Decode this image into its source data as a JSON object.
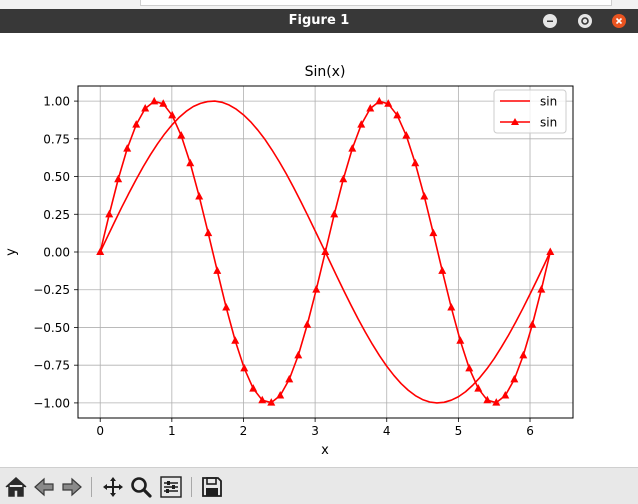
{
  "window": {
    "title": "Figure 1",
    "controls": [
      "minimize-icon",
      "maximize-icon",
      "close-icon"
    ]
  },
  "toolbar": {
    "buttons": [
      "home-icon",
      "back-arrow-icon",
      "forward-arrow-icon",
      "pan-icon",
      "zoom-icon",
      "subplots-icon",
      "save-icon"
    ]
  },
  "colors": {
    "line": "#ff0000",
    "titlebar": "#383838",
    "close": "#e95420",
    "toolbar": "#e8e8e8"
  },
  "chart_data": {
    "type": "line",
    "title": "Sin(x)",
    "xlabel": "x",
    "ylabel": "y",
    "xlim": [
      -0.31,
      6.6
    ],
    "ylim": [
      -1.1,
      1.1
    ],
    "xticks": [
      0,
      1,
      2,
      3,
      4,
      5,
      6
    ],
    "xtick_labels": [
      "0",
      "1",
      "2",
      "3",
      "4",
      "5",
      "6"
    ],
    "yticks": [
      1.0,
      0.75,
      0.5,
      0.25,
      0.0,
      -0.25,
      -0.5,
      -0.75,
      -1.0
    ],
    "ytick_labels": [
      "1.00",
      "0.75",
      "0.50",
      "0.25",
      "0.00",
      "−0.25",
      "−0.50",
      "−0.75",
      "−1.00"
    ],
    "grid": true,
    "legend": "top-right",
    "series": [
      {
        "name": "sin",
        "marker": "none",
        "color": "#ff0000",
        "x": [
          0,
          0.1,
          0.2,
          0.3,
          0.4,
          0.5,
          0.6,
          0.7,
          0.8,
          0.9,
          1.0,
          1.1,
          1.2,
          1.3,
          1.4,
          1.5,
          1.6,
          1.7,
          1.8,
          1.9,
          2.0,
          2.1,
          2.2,
          2.3,
          2.4,
          2.5,
          2.6,
          2.7,
          2.8,
          2.9,
          3.0,
          3.1,
          3.2,
          3.3,
          3.4,
          3.5,
          3.6,
          3.7,
          3.8,
          3.9,
          4.0,
          4.1,
          4.2,
          4.3,
          4.4,
          4.5,
          4.6,
          4.7,
          4.8,
          4.9,
          5.0,
          5.1,
          5.2,
          5.3,
          5.4,
          5.5,
          5.6,
          5.7,
          5.8,
          5.9,
          6.0,
          6.1,
          6.2,
          6.28
        ],
        "y": [
          0,
          0.1,
          0.199,
          0.296,
          0.389,
          0.479,
          0.565,
          0.644,
          0.717,
          0.783,
          0.841,
          0.891,
          0.932,
          0.964,
          0.985,
          0.997,
          1.0,
          0.992,
          0.974,
          0.946,
          0.909,
          0.863,
          0.808,
          0.746,
          0.675,
          0.598,
          0.516,
          0.427,
          0.335,
          0.239,
          0.141,
          0.042,
          -0.058,
          -0.158,
          -0.256,
          -0.351,
          -0.443,
          -0.53,
          -0.612,
          -0.688,
          -0.757,
          -0.818,
          -0.872,
          -0.916,
          -0.952,
          -0.978,
          -0.994,
          -1.0,
          -0.996,
          -0.982,
          -0.959,
          -0.926,
          -0.883,
          -0.832,
          -0.773,
          -0.706,
          -0.631,
          -0.551,
          -0.465,
          -0.374,
          -0.279,
          -0.182,
          -0.083,
          0.0
        ]
      },
      {
        "name": "sin",
        "marker": "triangle",
        "color": "#ff0000",
        "x": [
          0,
          0.126,
          0.251,
          0.377,
          0.503,
          0.628,
          0.754,
          0.88,
          1.005,
          1.131,
          1.257,
          1.382,
          1.508,
          1.634,
          1.759,
          1.885,
          2.011,
          2.136,
          2.262,
          2.388,
          2.513,
          2.639,
          2.765,
          2.89,
          3.016,
          3.142,
          3.267,
          3.393,
          3.519,
          3.644,
          3.77,
          3.896,
          4.021,
          4.147,
          4.273,
          4.398,
          4.524,
          4.65,
          4.775,
          4.901,
          5.027,
          5.152,
          5.278,
          5.404,
          5.529,
          5.655,
          5.781,
          5.906,
          6.032,
          6.158,
          6.283
        ],
        "y": [
          0,
          0.249,
          0.482,
          0.685,
          0.844,
          0.951,
          0.998,
          0.982,
          0.905,
          0.771,
          0.588,
          0.368,
          0.125,
          -0.125,
          -0.368,
          -0.588,
          -0.771,
          -0.905,
          -0.982,
          -0.998,
          -0.951,
          -0.844,
          -0.685,
          -0.482,
          -0.249,
          0,
          0.249,
          0.482,
          0.685,
          0.844,
          0.951,
          0.998,
          0.982,
          0.905,
          0.771,
          0.588,
          0.368,
          0.125,
          -0.125,
          -0.368,
          -0.588,
          -0.771,
          -0.905,
          -0.982,
          -0.998,
          -0.951,
          -0.844,
          -0.685,
          -0.482,
          -0.249,
          0
        ]
      }
    ]
  }
}
